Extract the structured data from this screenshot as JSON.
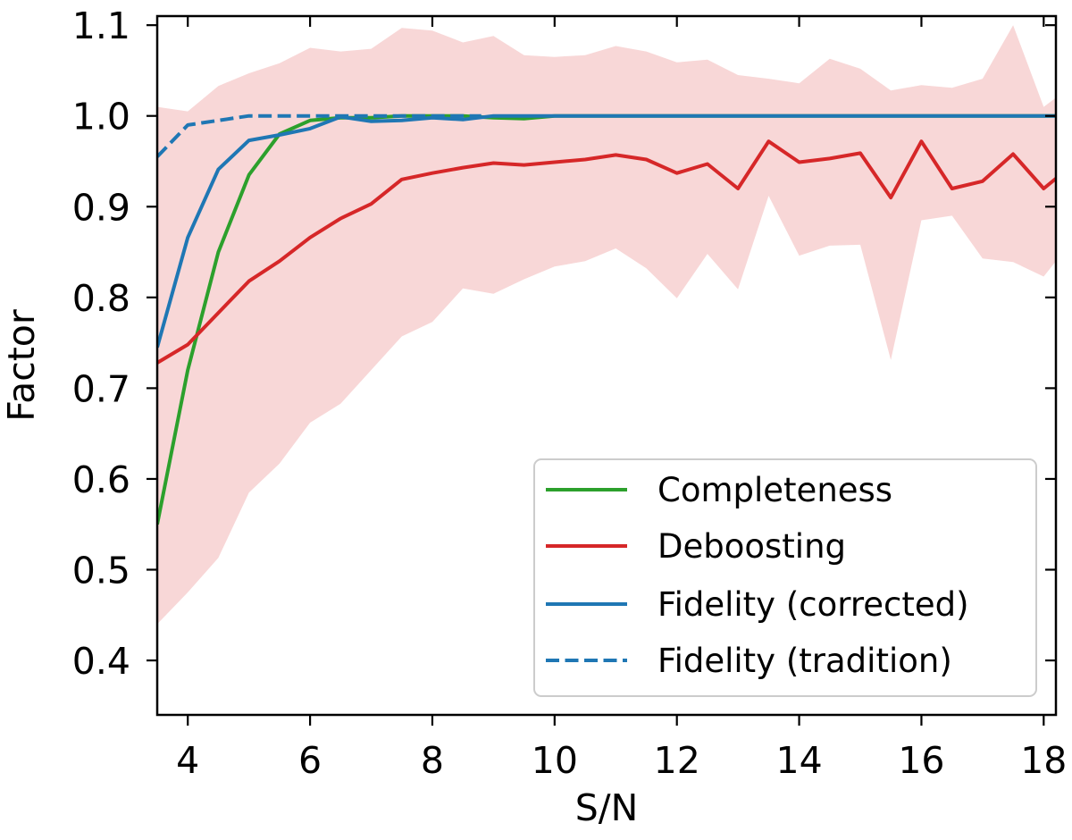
{
  "chart_data": {
    "type": "line",
    "xlabel": "S/N",
    "ylabel": "Factor",
    "xlim": [
      3.5,
      18.2
    ],
    "ylim": [
      0.34,
      1.11
    ],
    "xticks": [
      4,
      6,
      8,
      10,
      12,
      14,
      16,
      18
    ],
    "xtick_labels": [
      "4",
      "6",
      "8",
      "10",
      "12",
      "14",
      "16",
      "18"
    ],
    "yticks": [
      0.4,
      0.5,
      0.6,
      0.7,
      0.8,
      0.9,
      1.0,
      1.1
    ],
    "ytick_labels": [
      "0.4",
      "0.5",
      "0.6",
      "0.7",
      "0.8",
      "0.9",
      "1.0",
      "1.1"
    ],
    "legend_position": "lower-right",
    "series": [
      {
        "name": "Completeness",
        "color": "#2ca02c",
        "style": "solid",
        "x": [
          3.5,
          4.0,
          4.5,
          5.0,
          5.5,
          6.0,
          6.5,
          7.0,
          7.5,
          8.0,
          8.5,
          9.0,
          9.5,
          10.0,
          18.2
        ],
        "y": [
          0.55,
          0.72,
          0.85,
          0.935,
          0.98,
          0.995,
          0.998,
          0.998,
          1.0,
          1.0,
          1.0,
          0.998,
          0.997,
          1.0,
          1.0
        ]
      },
      {
        "name": "Deboosting",
        "color": "#d62728",
        "style": "solid",
        "x": [
          3.5,
          4.0,
          4.5,
          5.0,
          5.5,
          6.0,
          6.5,
          7.0,
          7.5,
          8.0,
          8.5,
          9.0,
          9.5,
          10.0,
          10.5,
          11.0,
          11.5,
          12.0,
          12.5,
          13.0,
          13.5,
          14.0,
          14.5,
          15.0,
          15.5,
          16.0,
          16.5,
          17.0,
          17.5,
          18.0,
          18.2
        ],
        "y": [
          0.728,
          0.748,
          0.783,
          0.818,
          0.84,
          0.866,
          0.887,
          0.903,
          0.93,
          0.937,
          0.943,
          0.948,
          0.946,
          0.949,
          0.952,
          0.957,
          0.952,
          0.937,
          0.947,
          0.92,
          0.972,
          0.949,
          0.953,
          0.959,
          0.91,
          0.972,
          0.92,
          0.928,
          0.958,
          0.92,
          0.931
        ]
      },
      {
        "name": "Fidelity (corrected)",
        "color": "#1f77b4",
        "style": "solid",
        "x": [
          3.5,
          4.0,
          4.5,
          5.0,
          5.5,
          6.0,
          6.5,
          7.0,
          7.5,
          8.0,
          8.5,
          9.0,
          10.0,
          18.2
        ],
        "y": [
          0.745,
          0.866,
          0.941,
          0.973,
          0.979,
          0.986,
          0.999,
          0.994,
          0.995,
          0.998,
          0.996,
          1.0,
          1.0,
          1.0
        ]
      },
      {
        "name": "Fidelity (tradition)",
        "color": "#1f77b4",
        "style": "dashed",
        "x": [
          3.5,
          4.0,
          4.5,
          5.0,
          6.0,
          8.8
        ],
        "y": [
          0.955,
          0.99,
          0.995,
          1.0,
          1.0,
          1.0
        ]
      }
    ],
    "deboosting_band": {
      "color": "#f8d7d7",
      "x": [
        3.5,
        4.0,
        4.5,
        5.0,
        5.5,
        6.0,
        6.5,
        7.0,
        7.5,
        8.0,
        8.5,
        9.0,
        9.5,
        10.0,
        10.5,
        11.0,
        11.5,
        12.0,
        12.5,
        13.0,
        13.5,
        14.0,
        14.5,
        15.0,
        15.5,
        16.0,
        16.5,
        17.0,
        17.5,
        18.0,
        18.2
      ],
      "upper": [
        1.01,
        1.005,
        1.033,
        1.047,
        1.058,
        1.075,
        1.071,
        1.074,
        1.097,
        1.094,
        1.081,
        1.088,
        1.067,
        1.065,
        1.067,
        1.077,
        1.071,
        1.059,
        1.062,
        1.045,
        1.041,
        1.036,
        1.063,
        1.052,
        1.028,
        1.034,
        1.031,
        1.041,
        1.1,
        1.01,
        1.02
      ],
      "lower": [
        0.44,
        0.475,
        0.513,
        0.585,
        0.617,
        0.662,
        0.683,
        0.72,
        0.757,
        0.773,
        0.81,
        0.804,
        0.82,
        0.834,
        0.84,
        0.854,
        0.832,
        0.799,
        0.848,
        0.809,
        0.912,
        0.846,
        0.857,
        0.858,
        0.731,
        0.885,
        0.89,
        0.843,
        0.839,
        0.823,
        0.84
      ]
    }
  }
}
